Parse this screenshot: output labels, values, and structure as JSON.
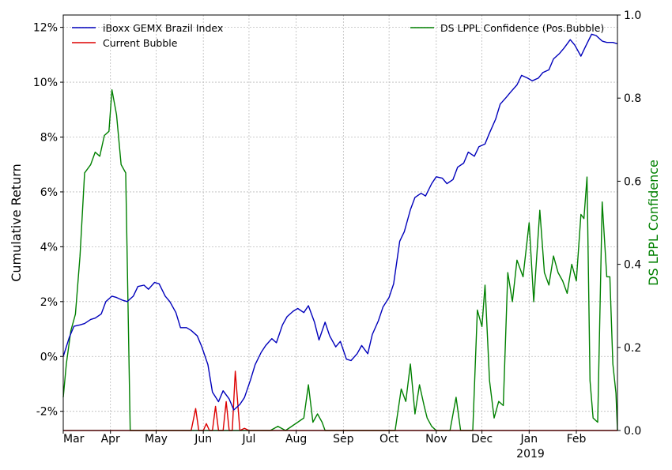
{
  "chart_data": {
    "type": "line",
    "title": "",
    "grid": true,
    "x_tick_labels": [
      "Mar",
      "Apr",
      "May",
      "Jun",
      "Jul",
      "Aug",
      "Sep",
      "Oct",
      "Nov",
      "Dec",
      "Jan",
      "Feb"
    ],
    "x_year_label": "2019",
    "x_range": [
      "2018-03-01",
      "2019-02-28"
    ],
    "y_left": {
      "label": "Cumulative Return",
      "range": [
        -0.027,
        0.1245
      ],
      "ticks": [
        -0.02,
        0.0,
        0.02,
        0.04,
        0.06,
        0.08,
        0.1,
        0.12
      ],
      "tick_labels": [
        "-2%",
        "0%",
        "2%",
        "4%",
        "6%",
        "8%",
        "10%",
        "12%"
      ]
    },
    "y_right": {
      "label": "DS LPPL Confidence",
      "label_color": "#008000",
      "range": [
        0.0,
        1.0
      ],
      "ticks": [
        0.0,
        0.2,
        0.4,
        0.6,
        0.8,
        1.0
      ],
      "tick_labels": [
        "0.0",
        "0.2",
        "0.4",
        "0.6",
        "0.8",
        "1.0"
      ]
    },
    "legend_left": {
      "placement": "top-left",
      "entries": [
        {
          "label": "iBoxx GEMX Brazil Index",
          "color": "#0000bb"
        },
        {
          "label": "Current Bubble",
          "color": "#dd0000"
        }
      ]
    },
    "legend_right": {
      "placement": "top-right",
      "entries": [
        {
          "label": "DS LPPL Confidence (Pos.Bubble)",
          "color": "#008000"
        }
      ]
    },
    "series": [
      {
        "name": "iBoxx GEMX Brazil Index",
        "axis": "left",
        "color": "#0000bb",
        "x": [
          "2018-03-01",
          "2018-03-05",
          "2018-03-08",
          "2018-03-12",
          "2018-03-15",
          "2018-03-19",
          "2018-03-22",
          "2018-03-26",
          "2018-03-29",
          "2018-04-02",
          "2018-04-05",
          "2018-04-09",
          "2018-04-12",
          "2018-04-16",
          "2018-04-19",
          "2018-04-23",
          "2018-04-26",
          "2018-04-30",
          "2018-05-03",
          "2018-05-07",
          "2018-05-10",
          "2018-05-14",
          "2018-05-17",
          "2018-05-21",
          "2018-05-24",
          "2018-05-28",
          "2018-05-31",
          "2018-06-04",
          "2018-06-07",
          "2018-06-11",
          "2018-06-14",
          "2018-06-18",
          "2018-06-21",
          "2018-06-25",
          "2018-06-28",
          "2018-07-02",
          "2018-07-05",
          "2018-07-09",
          "2018-07-12",
          "2018-07-16",
          "2018-07-19",
          "2018-07-23",
          "2018-07-26",
          "2018-07-30",
          "2018-08-02",
          "2018-08-06",
          "2018-08-09",
          "2018-08-13",
          "2018-08-16",
          "2018-08-20",
          "2018-08-23",
          "2018-08-27",
          "2018-08-30",
          "2018-09-03",
          "2018-09-06",
          "2018-09-10",
          "2018-09-13",
          "2018-09-17",
          "2018-09-20",
          "2018-09-24",
          "2018-09-27",
          "2018-10-01",
          "2018-10-04",
          "2018-10-08",
          "2018-10-11",
          "2018-10-15",
          "2018-10-18",
          "2018-10-22",
          "2018-10-25",
          "2018-10-29",
          "2018-11-01",
          "2018-11-05",
          "2018-11-08",
          "2018-11-12",
          "2018-11-15",
          "2018-11-19",
          "2018-11-22",
          "2018-11-26",
          "2018-11-29",
          "2018-12-03",
          "2018-12-06",
          "2018-12-10",
          "2018-12-13",
          "2018-12-17",
          "2018-12-20",
          "2018-12-24",
          "2018-12-27",
          "2018-12-31",
          "2019-01-03",
          "2019-01-07",
          "2019-01-10",
          "2019-01-14",
          "2019-01-17",
          "2019-01-21",
          "2019-01-24",
          "2019-01-28",
          "2019-01-31",
          "2019-02-04",
          "2019-02-07",
          "2019-02-11",
          "2019-02-14",
          "2019-02-18",
          "2019-02-21",
          "2019-02-25",
          "2019-02-28"
        ],
        "values": [
          0.0,
          0.007,
          0.011,
          0.0115,
          0.012,
          0.0135,
          0.014,
          0.0155,
          0.02,
          0.022,
          0.0215,
          0.0205,
          0.02,
          0.022,
          0.0255,
          0.026,
          0.0245,
          0.027,
          0.0265,
          0.022,
          0.02,
          0.016,
          0.0105,
          0.0105,
          0.0095,
          0.0075,
          0.0035,
          -0.003,
          -0.013,
          -0.0165,
          -0.0125,
          -0.0155,
          -0.0195,
          -0.0175,
          -0.015,
          -0.0085,
          -0.003,
          0.0015,
          0.004,
          0.0065,
          0.005,
          0.0115,
          0.0145,
          0.0165,
          0.0175,
          0.016,
          0.0185,
          0.0125,
          0.006,
          0.0125,
          0.0075,
          0.0035,
          0.0055,
          -0.001,
          -0.0015,
          0.001,
          0.004,
          0.001,
          0.008,
          0.013,
          0.018,
          0.0215,
          0.0265,
          0.042,
          0.0455,
          0.0535,
          0.058,
          0.0595,
          0.0585,
          0.063,
          0.0655,
          0.065,
          0.063,
          0.0645,
          0.069,
          0.0705,
          0.0745,
          0.073,
          0.0765,
          0.0775,
          0.0815,
          0.0865,
          0.092,
          0.0945,
          0.0965,
          0.099,
          0.1025,
          0.1015,
          0.1005,
          0.1015,
          0.1035,
          0.1045,
          0.1085,
          0.1105,
          0.1125,
          0.1155,
          0.1135,
          0.1095,
          0.113,
          0.1175,
          0.117,
          0.115,
          0.1145,
          0.1145,
          0.114
        ]
      },
      {
        "name": "Current Bubble",
        "axis": "left",
        "color": "#dd0000",
        "x": [
          "2018-03-01",
          "2018-05-24",
          "2018-05-27",
          "2018-05-29",
          "2018-06-01",
          "2018-06-03",
          "2018-06-05",
          "2018-06-07",
          "2018-06-09",
          "2018-06-11",
          "2018-06-14",
          "2018-06-16",
          "2018-06-18",
          "2018-06-20",
          "2018-06-22",
          "2018-06-25",
          "2018-06-28",
          "2018-07-01",
          "2018-07-05",
          "2018-07-10",
          "2018-12-05",
          "2019-02-28"
        ],
        "values": [
          -0.0271,
          -0.0271,
          -0.019,
          -0.0271,
          -0.0271,
          -0.0245,
          -0.0271,
          -0.0271,
          -0.0182,
          -0.0271,
          -0.0271,
          -0.0165,
          -0.0271,
          -0.0271,
          -0.0054,
          -0.0271,
          -0.0262,
          -0.0271,
          -0.0271,
          -0.0271,
          -0.0271,
          -0.0271
        ]
      },
      {
        "name": "DS LPPL Confidence (Pos.Bubble)",
        "axis": "right",
        "color": "#008000",
        "x": [
          "2018-03-01",
          "2018-03-03",
          "2018-03-06",
          "2018-03-09",
          "2018-03-12",
          "2018-03-15",
          "2018-03-19",
          "2018-03-22",
          "2018-03-25",
          "2018-03-28",
          "2018-03-31",
          "2018-04-02",
          "2018-04-05",
          "2018-04-08",
          "2018-04-11",
          "2018-04-14",
          "2018-04-17",
          "2018-04-20",
          "2018-04-24",
          "2018-04-27",
          "2018-04-30",
          "2018-05-02",
          "2018-05-05",
          "2018-05-08",
          "2018-05-10",
          "2018-07-15",
          "2018-07-20",
          "2018-07-25",
          "2018-08-02",
          "2018-08-06",
          "2018-08-09",
          "2018-08-12",
          "2018-08-15",
          "2018-08-18",
          "2018-08-20",
          "2018-08-23",
          "2018-10-05",
          "2018-10-09",
          "2018-10-12",
          "2018-10-15",
          "2018-10-18",
          "2018-10-21",
          "2018-10-24",
          "2018-10-26",
          "2018-10-29",
          "2018-11-01",
          "2018-11-04",
          "2018-11-07",
          "2018-11-10",
          "2018-11-14",
          "2018-11-17",
          "2018-11-20",
          "2018-11-25",
          "2018-11-28",
          "2018-12-01",
          "2018-12-03",
          "2018-12-06",
          "2018-12-09",
          "2018-12-12",
          "2018-12-15",
          "2018-12-18",
          "2018-12-21",
          "2018-12-24",
          "2018-12-28",
          "2019-01-01",
          "2019-01-04",
          "2019-01-08",
          "2019-01-11",
          "2019-01-14",
          "2019-01-17",
          "2019-01-20",
          "2019-01-23",
          "2019-01-26",
          "2019-01-29",
          "2019-02-01",
          "2019-02-04",
          "2019-02-06",
          "2019-02-08",
          "2019-02-10",
          "2019-02-12",
          "2019-02-15",
          "2019-02-18",
          "2019-02-21",
          "2019-02-23",
          "2019-02-25",
          "2019-02-27",
          "2019-02-28"
        ],
        "values": [
          0.08,
          0.16,
          0.24,
          0.28,
          0.42,
          0.62,
          0.64,
          0.67,
          0.66,
          0.71,
          0.72,
          0.82,
          0.76,
          0.64,
          0.62,
          0.0,
          0.0,
          0.0,
          0.0,
          0.0,
          0.0,
          0.0,
          0.0,
          0.0,
          0.0,
          0.0,
          0.01,
          0.0,
          0.02,
          0.03,
          0.11,
          0.02,
          0.04,
          0.02,
          0.0,
          0.0,
          0.0,
          0.1,
          0.07,
          0.16,
          0.04,
          0.11,
          0.06,
          0.03,
          0.01,
          0.0,
          0.0,
          0.0,
          0.0,
          0.08,
          0.0,
          0.0,
          0.0,
          0.29,
          0.25,
          0.35,
          0.12,
          0.03,
          0.07,
          0.06,
          0.38,
          0.31,
          0.41,
          0.37,
          0.5,
          0.31,
          0.53,
          0.38,
          0.35,
          0.42,
          0.38,
          0.36,
          0.33,
          0.4,
          0.36,
          0.52,
          0.51,
          0.61,
          0.12,
          0.03,
          0.02,
          0.55,
          0.37,
          0.37,
          0.16,
          0.09,
          0.0
        ]
      }
    ]
  }
}
